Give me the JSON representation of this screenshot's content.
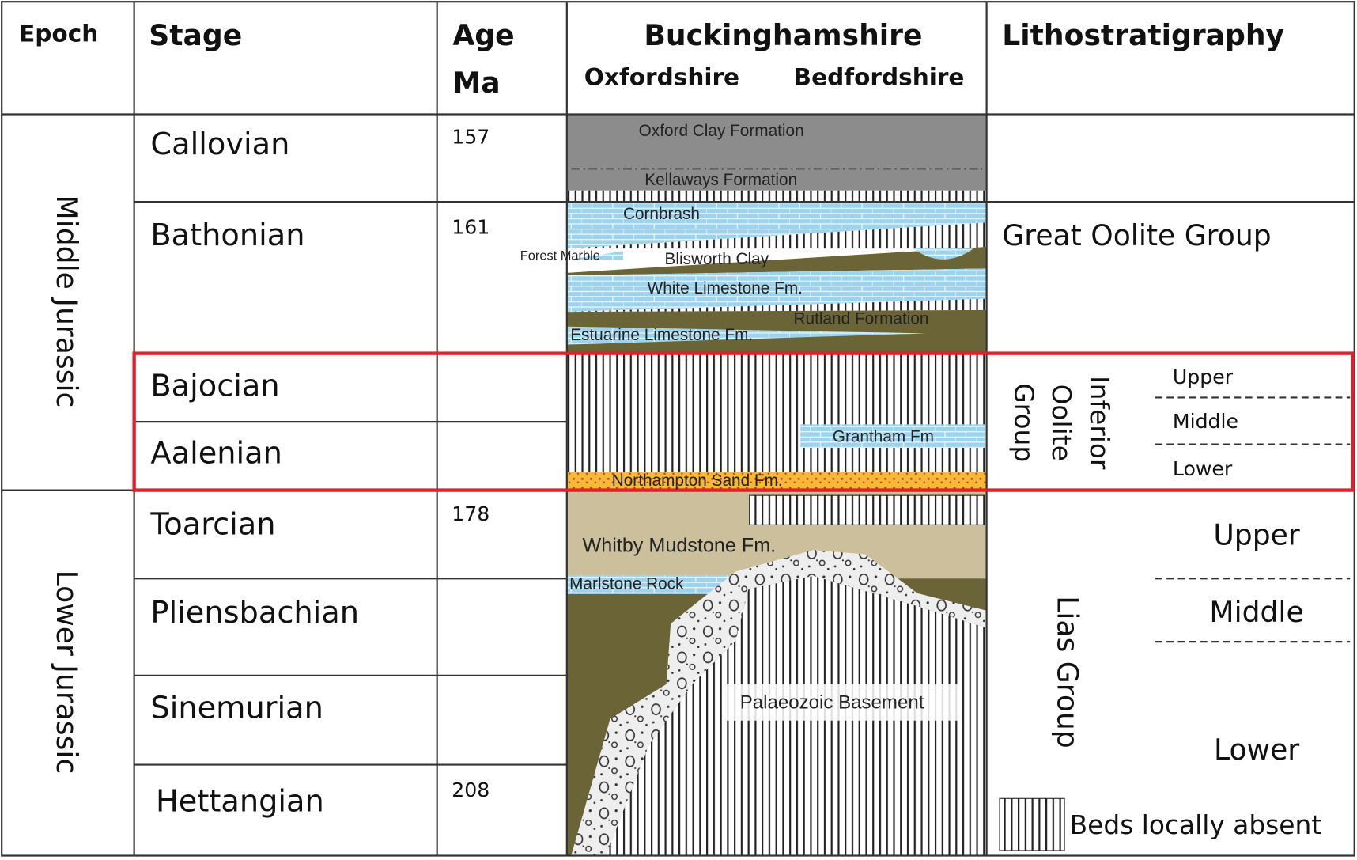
{
  "header": {
    "epoch": "Epoch",
    "stage": "Stage",
    "age": [
      "Age",
      "Ma"
    ],
    "region": "Buckinghamshire",
    "west": "Oxfordshire",
    "east": "Bedfordshire",
    "lithostratigraphy": "Lithostratigraphy"
  },
  "epochs": [
    "Middle Jurassic",
    "Lower Jurassic"
  ],
  "stages": [
    {
      "name": "Callovian",
      "age": 157
    },
    {
      "name": "Bathonian",
      "age": 161
    },
    {
      "name": "Bajocian"
    },
    {
      "name": "Aalenian"
    },
    {
      "name": "Toarcian",
      "age": 178
    },
    {
      "name": "Pliensbachian"
    },
    {
      "name": "Sinemurian"
    },
    {
      "name": "Hettangian",
      "age": 208
    }
  ],
  "formations": [
    "Oxford Clay Formation",
    "Kellaways Formation",
    "Cornbrash",
    "Forest Marble",
    "Blisworth Clay",
    "White Limestone Fm.",
    "Rutland Formation",
    "Estuarine Limestone Fm.",
    "Grantham Fm",
    "Northampton Sand Fm.",
    "Whitby Mudstone Fm.",
    "Marlstone Rock",
    "Palaeozoic Basement"
  ],
  "lithostratigraphy": {
    "great_oolite": "Great Oolite Group",
    "inferior_oolite": [
      "Inferior",
      "Oolite",
      "Group"
    ],
    "inferior_subdivisions": [
      "Upper",
      "Middle",
      "Lower"
    ],
    "lias": "Lias Group",
    "lias_subdivisions": [
      "Upper",
      "Middle",
      "Lower"
    ]
  },
  "legend": "Beds locally absent"
}
